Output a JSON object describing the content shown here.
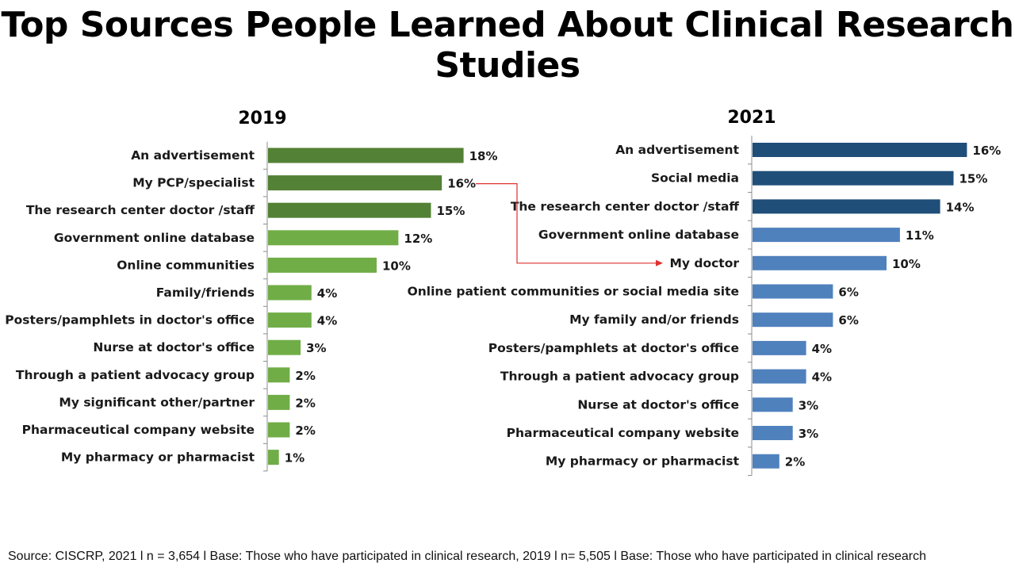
{
  "title": "Top Sources People Learned About Clinical Research Studies",
  "footer": "Source: CISCRP, 2021 l n = 3,654 l Base: Those who have participated in clinical research, 2019 l n= 5,505 l Base: Those who have participated in clinical research",
  "colors": {
    "green_dark": "#538135",
    "green_light": "#70ad47",
    "blue_dark": "#1f4e79",
    "blue_light": "#4f81bd",
    "arrow": "#e03030"
  },
  "chart_data": [
    {
      "type": "bar",
      "orientation": "horizontal",
      "title": "2019",
      "categories": [
        "An advertisement",
        "My PCP/specialist",
        "The research center doctor /staff",
        "Government online database",
        "Online communities",
        "Family/friends",
        "Posters/pamphlets in doctor's office",
        "Nurse at doctor's office",
        "Through a patient advocacy group",
        "My significant other/partner",
        "Pharmaceutical company website",
        "My pharmacy or pharmacist"
      ],
      "values": [
        18,
        16,
        15,
        12,
        10,
        4,
        4,
        3,
        2,
        2,
        2,
        1
      ],
      "value_labels": [
        "18%",
        "16%",
        "15%",
        "12%",
        "10%",
        "4%",
        "4%",
        "3%",
        "2%",
        "2%",
        "2%",
        "1%"
      ],
      "highlight_top": 3,
      "unit": "%"
    },
    {
      "type": "bar",
      "orientation": "horizontal",
      "title": "2021",
      "categories": [
        "An advertisement",
        "Social media",
        "The research center doctor /staff",
        "Government online database",
        "My doctor",
        "Online patient communities or social media site",
        "My family and/or friends",
        "Posters/pamphlets at doctor's office",
        "Through a patient advocacy group",
        "Nurse at doctor's office",
        "Pharmaceutical company website",
        "My pharmacy or pharmacist"
      ],
      "values": [
        16,
        15,
        14,
        11,
        10,
        6,
        6,
        4,
        4,
        3,
        3,
        2
      ],
      "value_labels": [
        "16%",
        "15%",
        "14%",
        "11%",
        "10%",
        "6%",
        "6%",
        "4%",
        "4%",
        "3%",
        "3%",
        "2%"
      ],
      "highlight_top": 3,
      "unit": "%"
    }
  ],
  "annotation": {
    "from_chart": 0,
    "from_index": 1,
    "to_chart": 1,
    "to_index": 4
  }
}
